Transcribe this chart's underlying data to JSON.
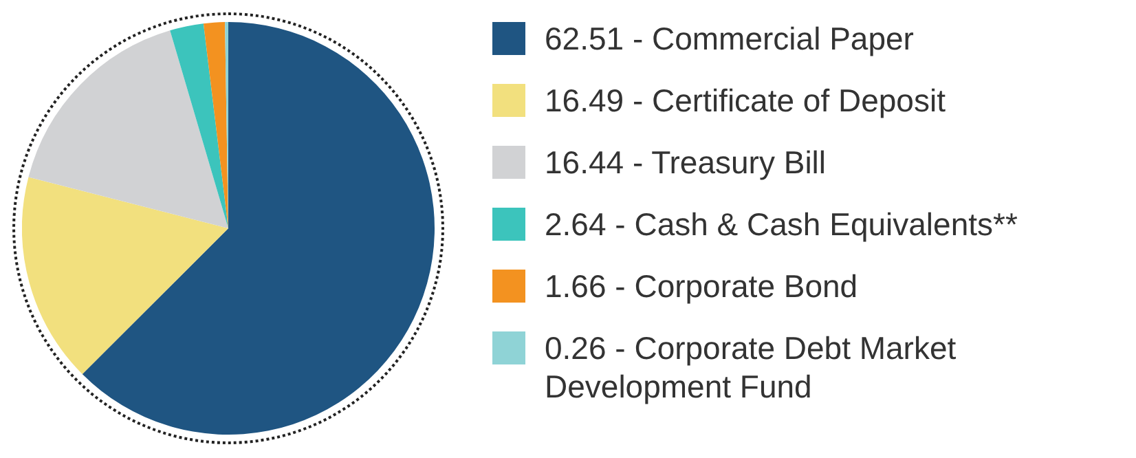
{
  "chart_data": {
    "type": "pie",
    "categories": [
      "62.51 - Commercial Paper",
      "16.49 - Certificate of Deposit",
      "16.44 - Treasury Bill",
      "2.64 - Cash & Cash Equivalents**",
      "1.66 - Corporate Bond",
      "0.26 - Corporate Debt Market Development Fund"
    ],
    "values": [
      62.51,
      16.49,
      16.44,
      2.64,
      1.66,
      0.26
    ],
    "colors": [
      "#1f5582",
      "#f2e07e",
      "#d1d2d4",
      "#3cc4bc",
      "#f39220",
      "#8fd3d6"
    ],
    "legend": "right"
  }
}
